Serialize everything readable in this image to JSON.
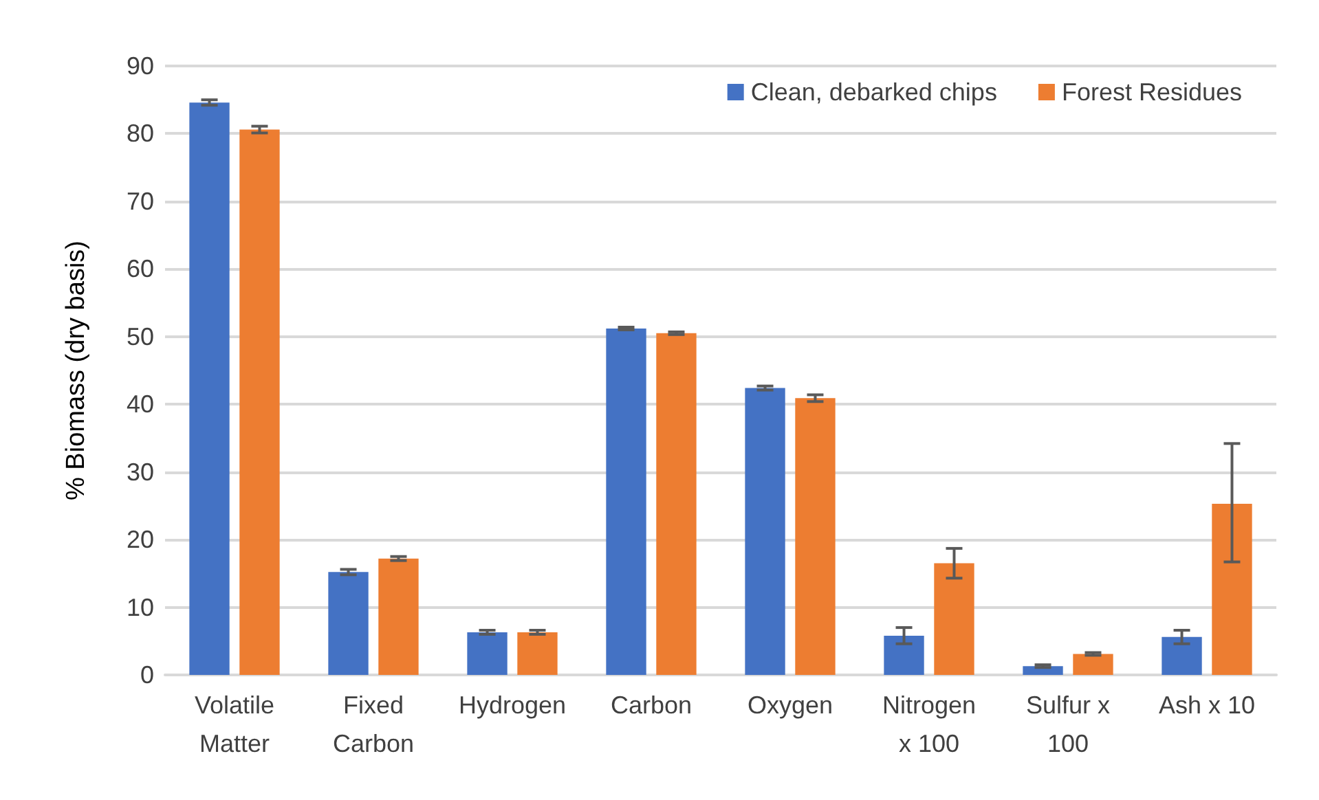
{
  "chart_data": {
    "type": "bar",
    "ylabel": "% Biomass (dry basis)",
    "categories": [
      "Volatile\nMatter",
      "Fixed\nCarbon",
      "Hydrogen",
      "Carbon",
      "Oxygen",
      "Nitrogen\nx 100",
      "Sulfur x\n100",
      "Ash x 10"
    ],
    "series": [
      {
        "name": "Clean, debarked chips",
        "color": "#4472c4",
        "values": [
          84.6,
          15.2,
          6.3,
          51.2,
          42.4,
          5.8,
          1.3,
          5.6
        ],
        "errors": [
          0.4,
          0.4,
          0.3,
          0.2,
          0.3,
          1.2,
          0.2,
          1.0
        ]
      },
      {
        "name": "Forest Residues",
        "color": "#ed7d31",
        "values": [
          80.6,
          17.2,
          6.3,
          50.5,
          40.9,
          16.5,
          3.1,
          25.3
        ],
        "errors": [
          0.5,
          0.3,
          0.3,
          0.2,
          0.5,
          2.2,
          0.2,
          [
            16.7,
            34.2
          ]
        ]
      }
    ],
    "ylim": [
      0,
      90
    ],
    "yticks": [
      0,
      10,
      20,
      30,
      40,
      50,
      60,
      70,
      80,
      90
    ],
    "grid": "y",
    "legend": "top right"
  }
}
